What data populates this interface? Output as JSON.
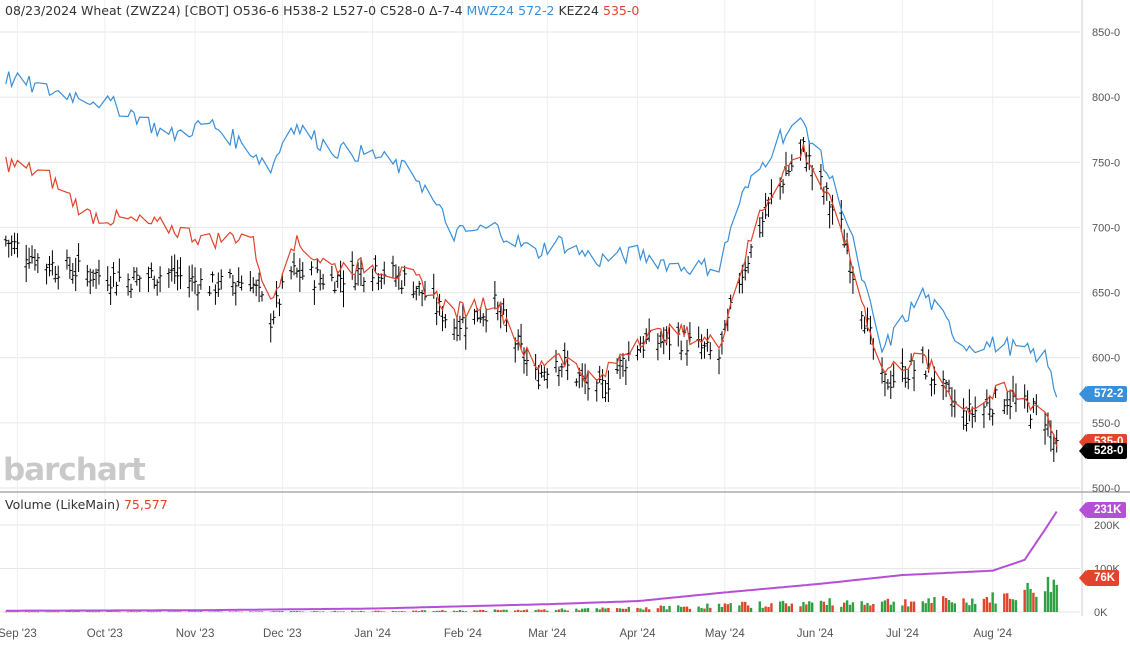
{
  "header": {
    "info": "08/23/2024 Wheat (ZWZ24) [CBOT] O536-6 H538-2 L527-0 C528-0 Δ-7-4",
    "mw_label": "MWZ24",
    "mw_value": "572-2",
    "ke_label": "KEZ24",
    "ke_value": "535-0"
  },
  "volume_panel": {
    "label": "Volume  (LikeMain)",
    "value": "75,577"
  },
  "logo": "barchart",
  "colors": {
    "price_bar": "#000000",
    "mwz": "#3a8fd9",
    "kez": "#e1442c",
    "oi": "#b44fd6",
    "vol_up": "#2ea043",
    "vol_down": "#e1442c",
    "grid": "#e6e6e6"
  },
  "chart_data": {
    "type": "line",
    "x_tick_labels": [
      "Sep '23",
      "Oct '23",
      "Nov '23",
      "Dec '23",
      "Jan '24",
      "Feb '24",
      "Mar '24",
      "Apr '24",
      "May '24",
      "Jun '24",
      "Jul '24",
      "Aug '24"
    ],
    "price_axis": {
      "min": 500,
      "max": 850,
      "tick_labels": [
        "850-0",
        "800-0",
        "750-0",
        "700-0",
        "650-0",
        "600-0",
        "550-0",
        "500-0"
      ],
      "tick_values": [
        850,
        800,
        750,
        700,
        650,
        600,
        550,
        500
      ]
    },
    "volume_axis": {
      "min": 0,
      "max": 230000,
      "tick_labels": [
        "200K",
        "100K",
        "0K"
      ],
      "tick_values": [
        200000,
        100000,
        0
      ]
    },
    "badges": {
      "mwz": "572-2",
      "kez": "535-0",
      "zwz": "528-0",
      "oi": "231K",
      "volume": "76K"
    },
    "series": [
      {
        "name": "ZWZ24",
        "style": "ohlc",
        "dates": [
          "2023-08-28",
          "2023-09-11",
          "2023-09-25",
          "2023-10-09",
          "2023-10-23",
          "2023-11-06",
          "2023-11-20",
          "2023-11-27",
          "2023-12-04",
          "2023-12-18",
          "2024-01-02",
          "2024-01-16",
          "2024-01-29",
          "2024-02-12",
          "2024-02-26",
          "2024-03-04",
          "2024-03-18",
          "2024-04-01",
          "2024-04-15",
          "2024-04-29",
          "2024-05-06",
          "2024-05-13",
          "2024-05-20",
          "2024-05-28",
          "2024-06-10",
          "2024-06-24",
          "2024-07-08",
          "2024-07-22",
          "2024-08-05",
          "2024-08-19",
          "2024-08-23"
        ],
        "values": [
          690,
          672,
          665,
          660,
          665,
          655,
          660,
          630,
          665,
          660,
          670,
          655,
          625,
          640,
          585,
          600,
          572,
          610,
          615,
          600,
          660,
          700,
          735,
          760,
          700,
          580,
          595,
          555,
          570,
          555,
          528
        ]
      },
      {
        "name": "KEZ24",
        "style": "line",
        "dates": [
          "2023-08-28",
          "2023-09-11",
          "2023-09-25",
          "2023-10-09",
          "2023-10-23",
          "2023-11-06",
          "2023-11-20",
          "2023-11-27",
          "2023-12-04",
          "2023-12-18",
          "2024-01-02",
          "2024-01-16",
          "2024-01-29",
          "2024-02-12",
          "2024-02-26",
          "2024-03-04",
          "2024-03-18",
          "2024-04-01",
          "2024-04-15",
          "2024-04-29",
          "2024-05-06",
          "2024-05-13",
          "2024-05-20",
          "2024-05-28",
          "2024-06-10",
          "2024-06-24",
          "2024-07-08",
          "2024-07-22",
          "2024-08-05",
          "2024-08-19",
          "2024-08-23"
        ],
        "values": [
          750,
          740,
          710,
          705,
          700,
          690,
          695,
          640,
          690,
          670,
          670,
          660,
          635,
          645,
          590,
          605,
          580,
          615,
          620,
          610,
          665,
          710,
          740,
          760,
          700,
          590,
          600,
          560,
          575,
          560,
          535
        ]
      },
      {
        "name": "MWZ24",
        "style": "line",
        "dates": [
          "2023-08-28",
          "2023-09-11",
          "2023-09-25",
          "2023-10-09",
          "2023-10-23",
          "2023-11-06",
          "2023-11-20",
          "2023-11-27",
          "2023-12-04",
          "2023-12-18",
          "2024-01-02",
          "2024-01-16",
          "2024-01-29",
          "2024-02-12",
          "2024-02-26",
          "2024-03-04",
          "2024-03-18",
          "2024-04-01",
          "2024-04-15",
          "2024-04-29",
          "2024-05-06",
          "2024-05-13",
          "2024-05-20",
          "2024-05-28",
          "2024-06-10",
          "2024-06-24",
          "2024-07-08",
          "2024-07-22",
          "2024-08-05",
          "2024-08-19",
          "2024-08-23"
        ],
        "values": [
          815,
          805,
          800,
          790,
          770,
          780,
          760,
          745,
          780,
          760,
          755,
          740,
          695,
          700,
          680,
          690,
          675,
          680,
          670,
          670,
          720,
          745,
          770,
          780,
          720,
          605,
          650,
          610,
          610,
          600,
          572
        ]
      }
    ],
    "volume": {
      "dates": [
        "2023-09-01",
        "2023-11-01",
        "2024-01-02",
        "2024-02-01",
        "2024-03-01",
        "2024-04-01",
        "2024-05-01",
        "2024-06-03",
        "2024-07-01",
        "2024-07-22",
        "2024-08-05",
        "2024-08-12",
        "2024-08-19",
        "2024-08-23"
      ],
      "values": [
        800,
        1500,
        2500,
        4000,
        6000,
        10000,
        18000,
        25000,
        28000,
        30000,
        40000,
        55000,
        70000,
        76000
      ]
    },
    "open_interest": {
      "dates": [
        "2023-08-28",
        "2023-11-01",
        "2024-01-02",
        "2024-03-01",
        "2024-04-01",
        "2024-05-01",
        "2024-06-03",
        "2024-07-01",
        "2024-08-01",
        "2024-08-12",
        "2024-08-19",
        "2024-08-23"
      ],
      "values": [
        3000,
        4000,
        8000,
        18000,
        25000,
        45000,
        65000,
        85000,
        95000,
        120000,
        190000,
        231000
      ]
    }
  }
}
